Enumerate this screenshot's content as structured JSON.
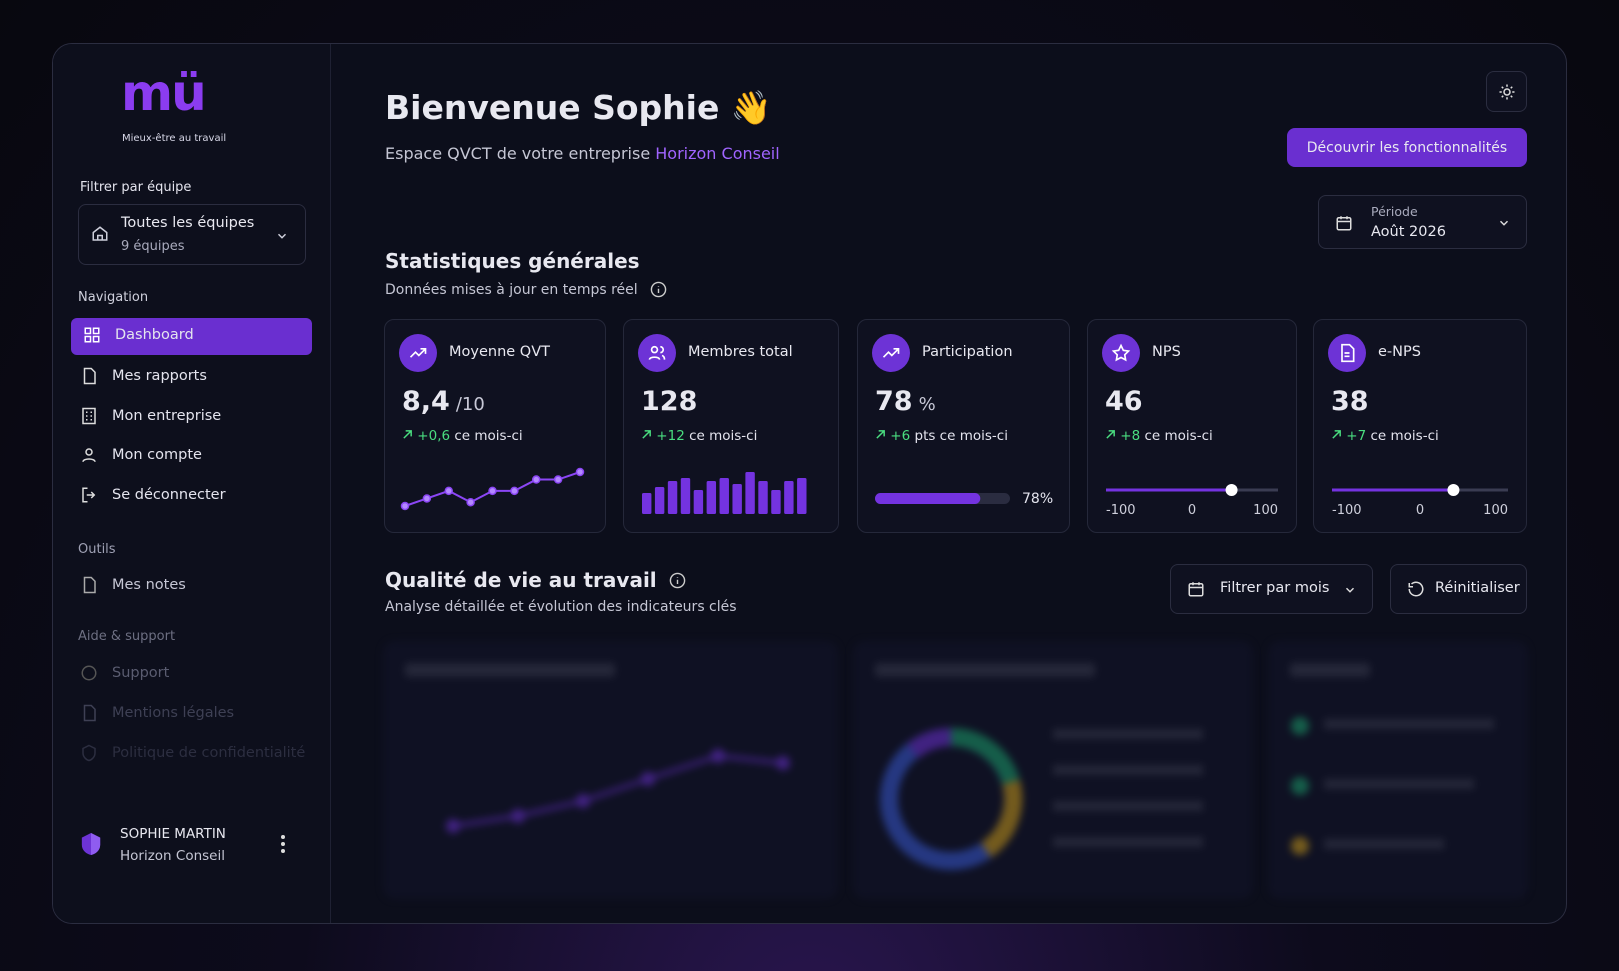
{
  "sidebar": {
    "logo": "mü",
    "tagline": "Mieux-être au travail",
    "team_filter": {
      "label": "Filtrer par équipe",
      "value": "Toutes les équipes",
      "count": "9 équipes"
    },
    "nav_heading": "Navigation",
    "nav": [
      "Dashboard",
      "Mes rapports",
      "Mon entreprise",
      "Mon compte",
      "Se déconnecter"
    ],
    "tools_heading": "Outils",
    "tools": [
      "Mes notes"
    ],
    "help_heading": "Aide & support",
    "help": [
      "Support",
      "Mentions légales",
      "Politique de confidentialité"
    ],
    "user": {
      "name": "SOPHIE MARTIN",
      "company": "Horizon Conseil"
    }
  },
  "header": {
    "title": "Bienvenue Sophie 👋",
    "subtitle": "Espace QVCT de votre entreprise",
    "company": "Horizon Conseil",
    "cta": "Découvrir les fonctionnalités",
    "period_label": "Période",
    "period": "Août 2026"
  },
  "stats": {
    "title": "Statistiques générales",
    "subtitle": "Données mises à jour en temps réel",
    "cards": [
      {
        "label": "Moyenne QVT",
        "value": "8,4",
        "unit": "/10",
        "change": "+0,6",
        "change_text": "ce mois-ci",
        "sparkline": [
          7.6,
          7.8,
          8.0,
          7.7,
          8.0,
          8.0,
          8.3,
          8.3,
          8.5
        ]
      },
      {
        "label": "Membres total",
        "value": "128",
        "change": "+12",
        "change_text": "ce mois-ci",
        "bars": [
          7,
          9,
          11,
          12,
          8,
          11,
          12,
          10,
          14,
          11,
          8,
          11,
          12
        ]
      },
      {
        "label": "Participation",
        "value": "78",
        "unit": "%",
        "change": "+6",
        "change_text": "pts ce mois-ci",
        "progress": {
          "value": 78,
          "label": "78%"
        }
      },
      {
        "label": "NPS",
        "value": "46",
        "change": "+8",
        "change_text": "ce mois-ci",
        "gauge": {
          "value": 46,
          "scale": [
            -100,
            0,
            100
          ]
        }
      },
      {
        "label": "e-NPS",
        "value": "38",
        "change": "+7",
        "change_text": "ce mois-ci",
        "gauge": {
          "value": 38,
          "scale": [
            -100,
            0,
            100
          ]
        }
      }
    ]
  },
  "quality": {
    "title": "Qualité de vie au travail",
    "subtitle": "Analyse détaillée et évolution des indicateurs clés",
    "filter": "Filtrer par mois",
    "reset": "Réinitialiser"
  }
}
